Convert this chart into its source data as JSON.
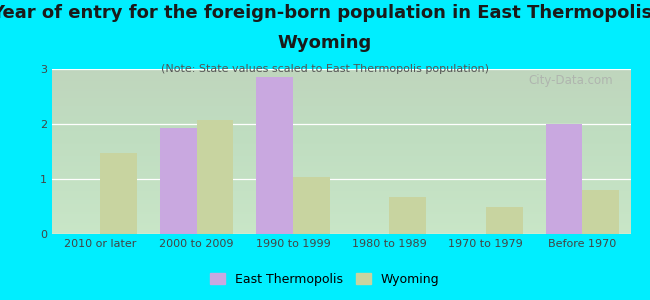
{
  "title_line1": "Year of entry for the foreign-born population in East Thermopolis,",
  "title_line2": "Wyoming",
  "subtitle": "(Note: State values scaled to East Thermopolis population)",
  "categories": [
    "2010 or later",
    "2000 to 2009",
    "1990 to 1999",
    "1980 to 1989",
    "1970 to 1979",
    "Before 1970"
  ],
  "east_thermopolis": [
    0,
    1.93,
    2.85,
    0,
    0,
    2.0
  ],
  "wyoming": [
    1.48,
    2.08,
    1.04,
    0.68,
    0.49,
    0.8
  ],
  "color_et": "#c9a8e0",
  "color_wy": "#c8d4a0",
  "background_outer": "#00eeff",
  "background_plot_top": "#f0f8f0",
  "background_plot_bottom": "#d8efd8",
  "ylim": [
    0,
    3.0
  ],
  "yticks": [
    0,
    1,
    2,
    3
  ],
  "bar_width": 0.38,
  "legend_et": "East Thermopolis",
  "legend_wy": "Wyoming",
  "watermark": "City-Data.com",
  "title_fontsize": 13,
  "subtitle_fontsize": 8,
  "tick_fontsize": 8
}
